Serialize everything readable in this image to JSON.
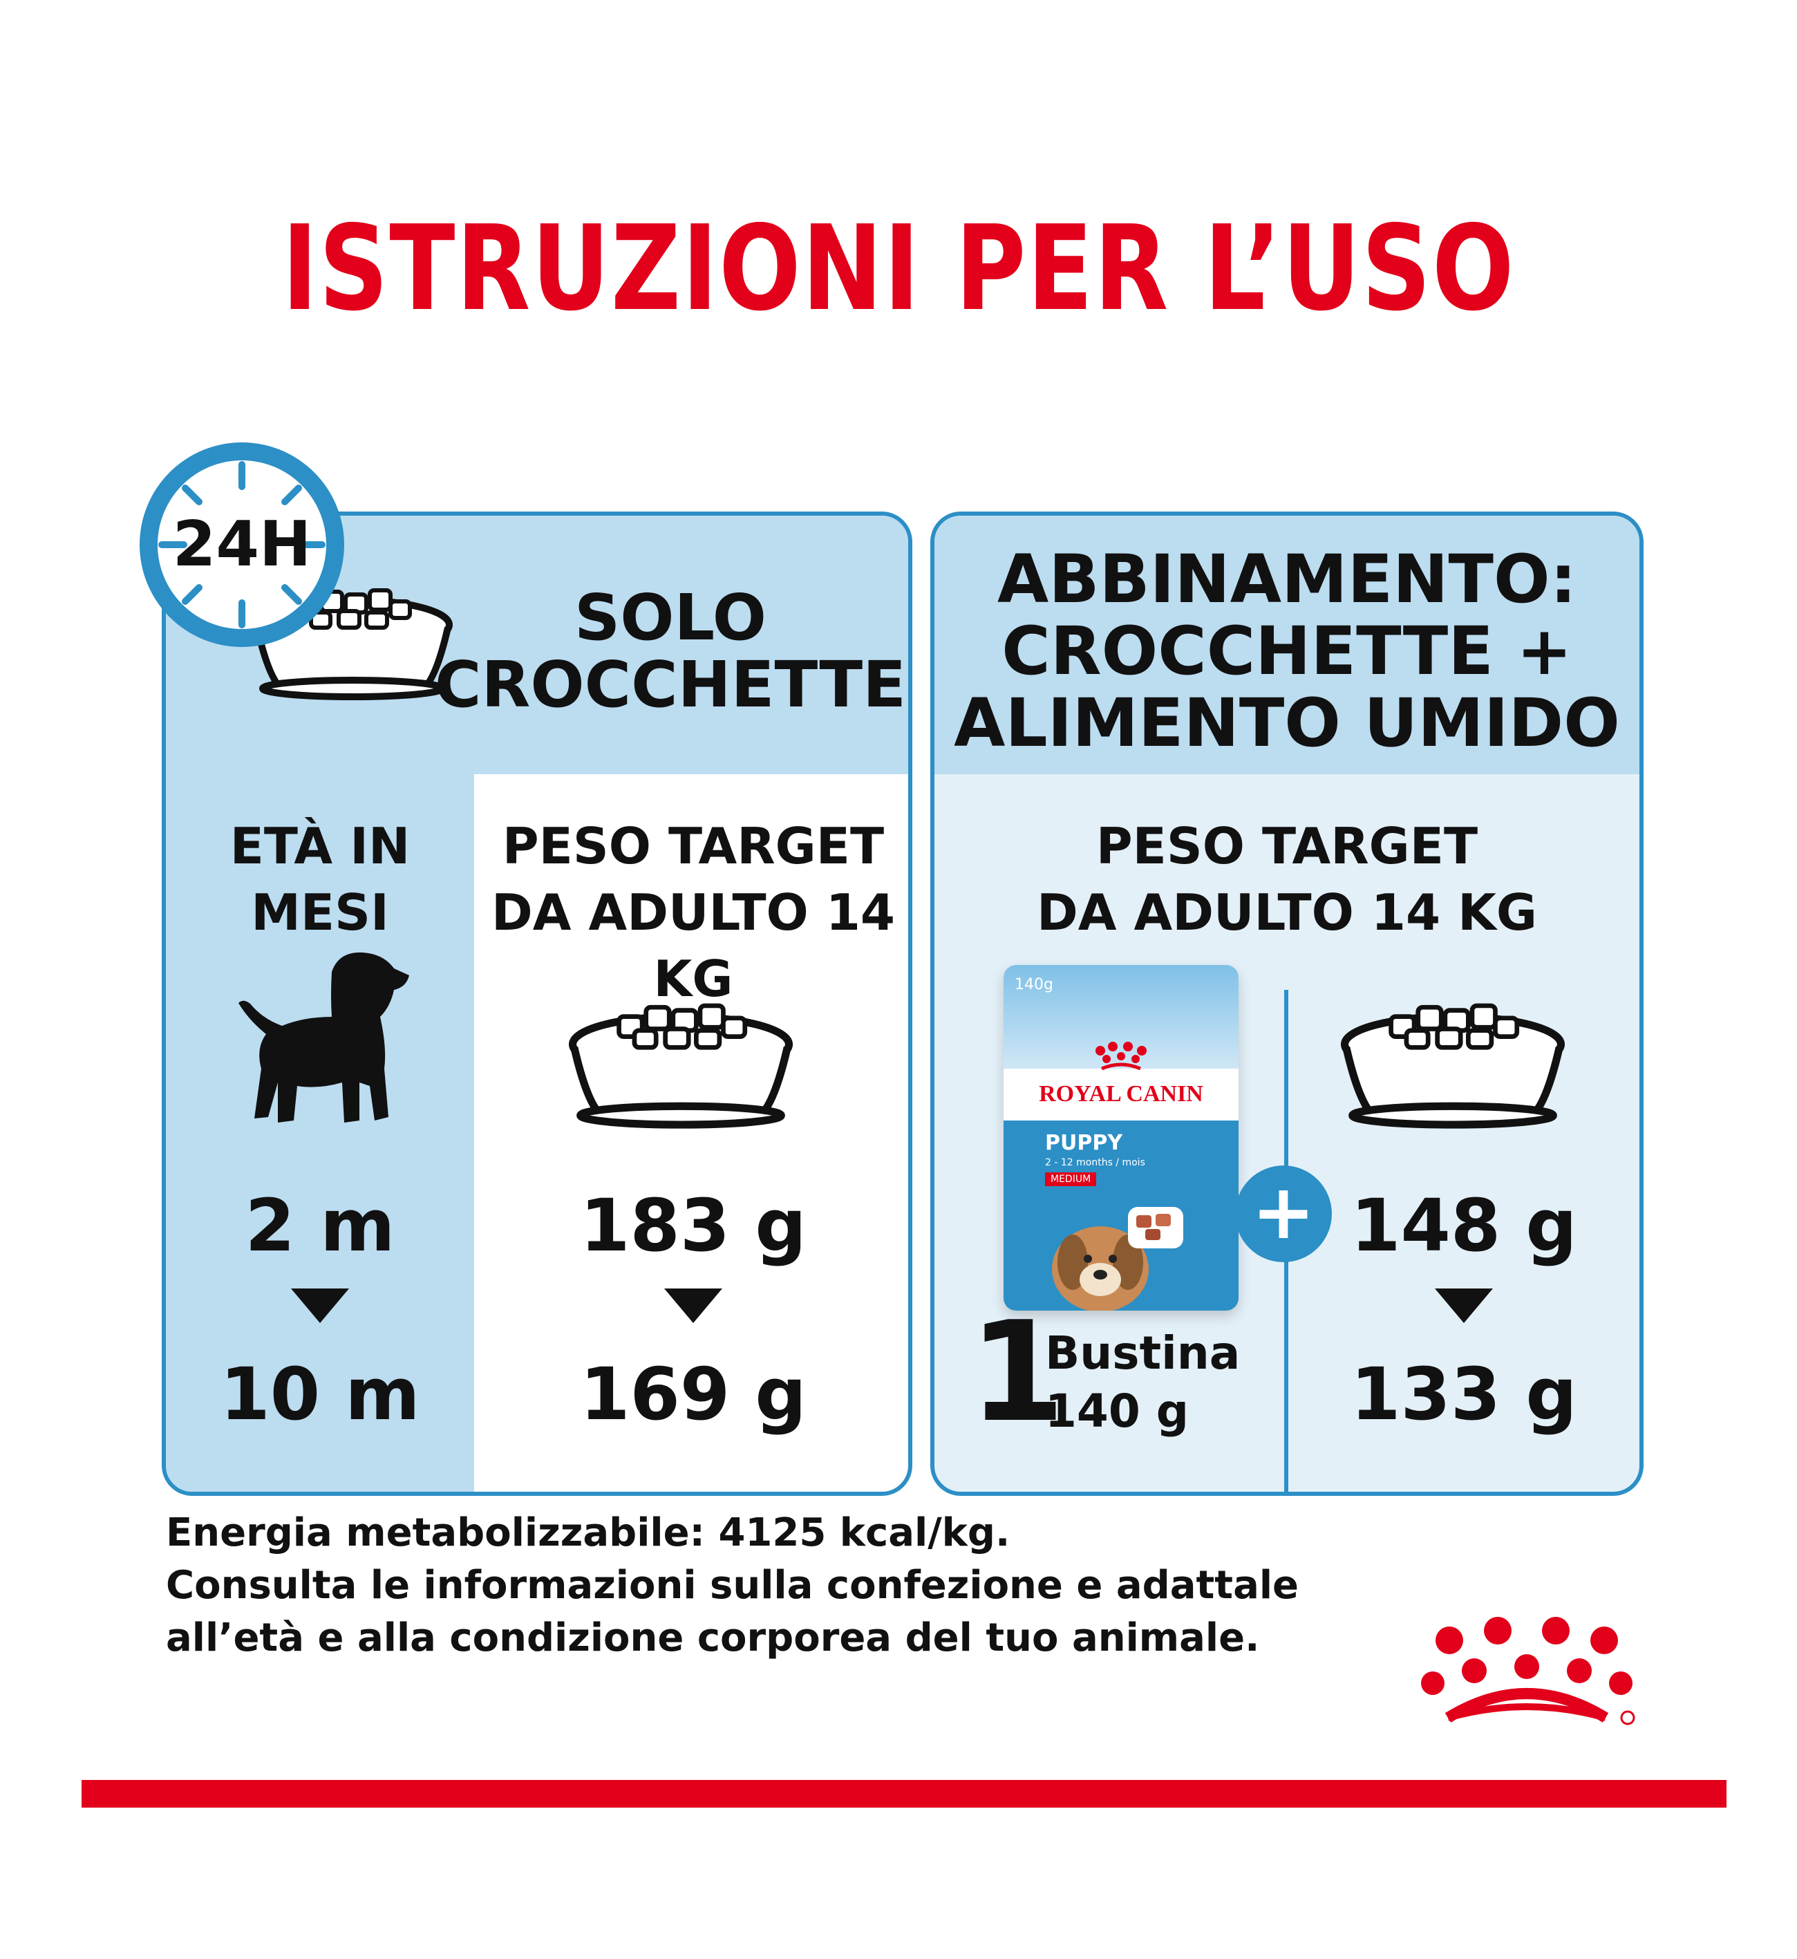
{
  "title": "ISTRUZIONI PER L’USO",
  "clock_badge": "24H",
  "left_panel": {
    "heading_line1": "SOLO",
    "heading_line2": "CROCCHETTE",
    "age_header_line1": "ETÀ IN",
    "age_header_line2": "MESI",
    "weight_header_line1": "PESO TARGET",
    "weight_header_line2": "DA ADULTO 14 KG",
    "age_start": "2 m",
    "age_end": "10 m",
    "grams_start": "183 g",
    "grams_end": "169 g"
  },
  "right_panel": {
    "heading_line1": "ABBINAMENTO:",
    "heading_line2": "CROCCHETTE +",
    "heading_line3": "ALIMENTO UMIDO",
    "weight_header_line1": "PESO TARGET",
    "weight_header_line2": "DA ADULTO 14 KG",
    "pouch": {
      "weight": "140g",
      "brand": "ROYAL CANIN",
      "variant": "PUPPY",
      "size_tag": "MEDIUM",
      "age_range": "2 - 12 months / mois"
    },
    "wet_count": "1",
    "wet_label": "Bustina",
    "wet_weight": "140 g",
    "plus_symbol": "+",
    "grams_start": "148 g",
    "grams_end": "133 g"
  },
  "footer": {
    "line1": "Energia metabolizzabile: 4125 kcal/kg.",
    "line2": "Consulta le informazioni sulla confezione e adattale",
    "line3": "all’età e alla condizione corporea del tuo animale."
  },
  "colors": {
    "brand_red": "#e2001a",
    "accent_blue": "#2c8fc6",
    "light_blue": "#bcdcf0"
  }
}
